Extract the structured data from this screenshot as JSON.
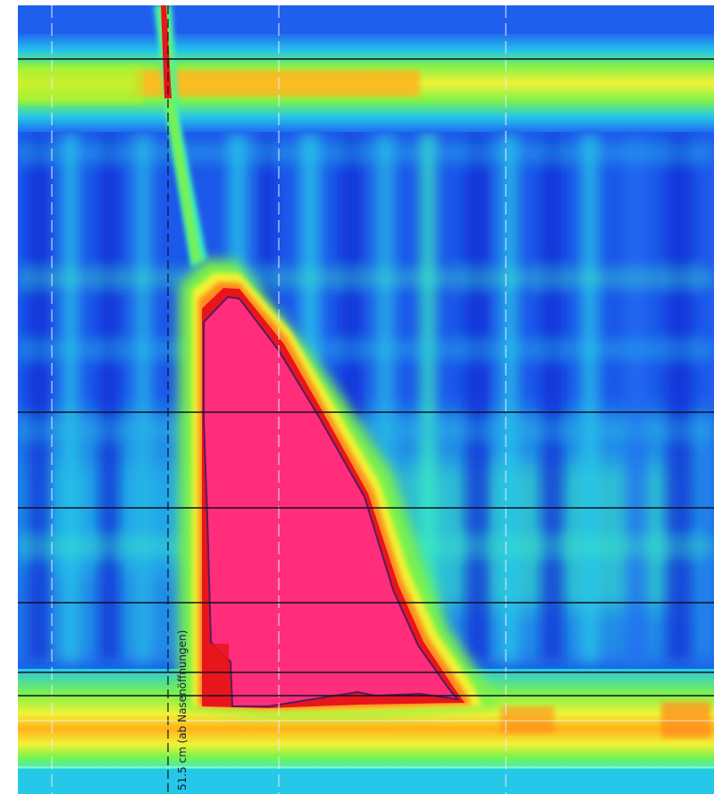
{
  "chart_data": {
    "type": "heatmap",
    "title": "",
    "xlabel": "",
    "ylabel": "",
    "colorscale": [
      "#0d2fd6",
      "#1f6cf0",
      "#25c8e8",
      "#3af0c0",
      "#7df24a",
      "#f2f236",
      "#ff8a1a",
      "#e8161c",
      "#ff2d7a"
    ],
    "annotation": "51.5 cm (ab Nasenöffnungen)",
    "features": {
      "upper_sphincter_band": "high pressure",
      "bolus_front": "high pressure",
      "lower_sphincter_band": "high pressure"
    },
    "grid": true
  }
}
